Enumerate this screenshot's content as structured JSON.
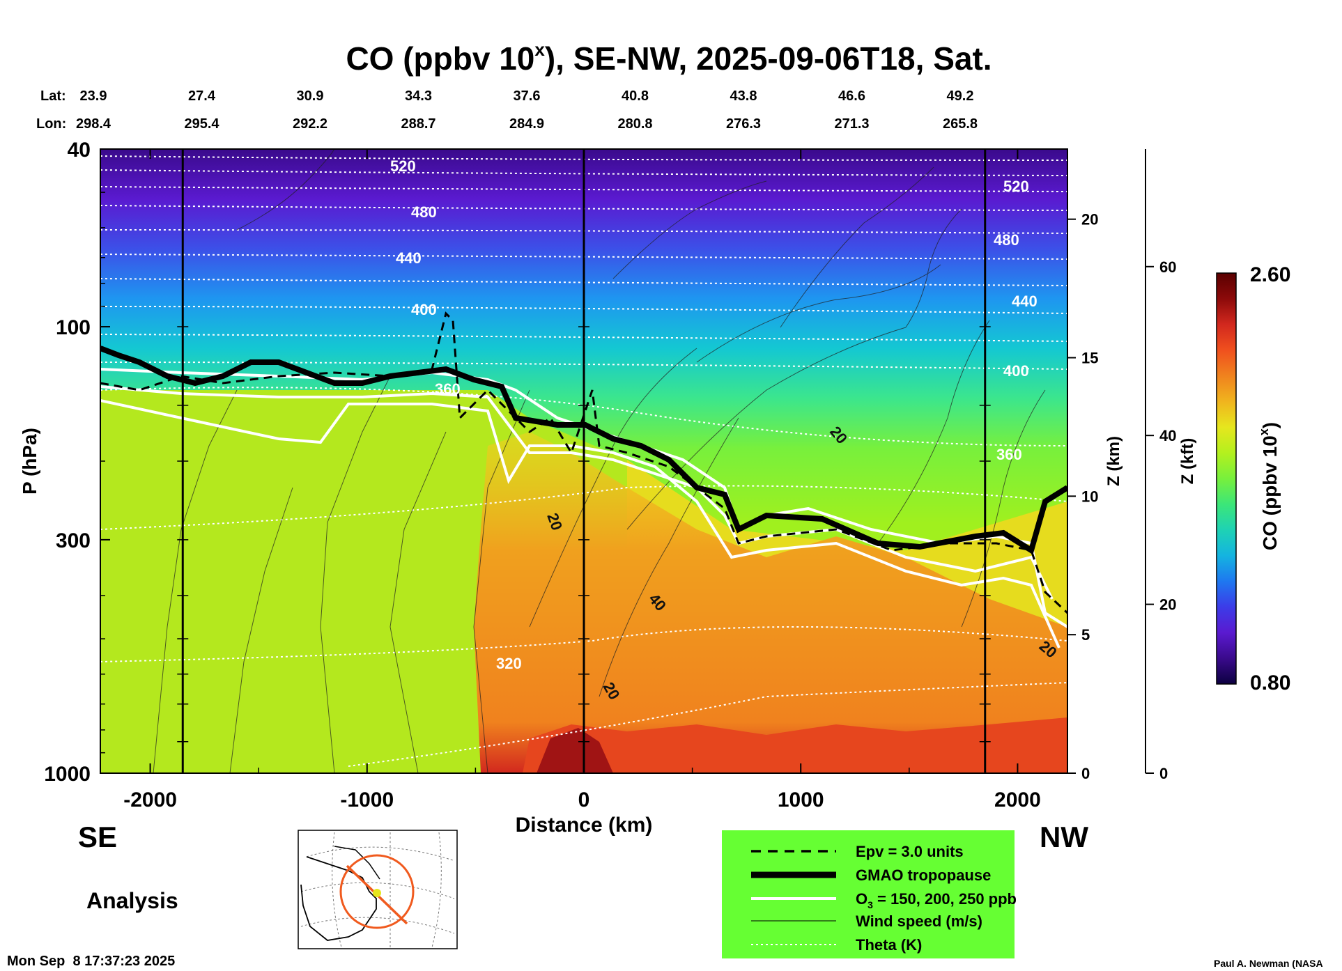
{
  "chart_data": {
    "type": "heatmap",
    "title": "CO (ppbv 10",
    "title_sup": "x",
    "title_rest": "), SE-NW, 2025-09-06T18, Sat.",
    "xlabel": "Distance (km)",
    "ylabel": "P (hPa)",
    "y2label": "Z (km)",
    "y3label": "Z (kft)",
    "x_ticks": [
      "-2000",
      "-1000",
      "0",
      "1000",
      "2000"
    ],
    "x_tick_values": [
      -2000,
      -1000,
      0,
      1000,
      2000
    ],
    "xlim": [
      -2230,
      2230
    ],
    "y_ticks": [
      "40",
      "100",
      "300",
      "1000"
    ],
    "y_tick_values": [
      40,
      100,
      300,
      1000
    ],
    "ylim": [
      1000,
      40
    ],
    "z_km_ticks": [
      "0",
      "5",
      "10",
      "15",
      "20"
    ],
    "z_kft_ticks": [
      "0",
      "20",
      "40",
      "60"
    ],
    "lat_label": "Lat:",
    "lon_label": "Lon:",
    "lats": [
      "23.9",
      "27.4",
      "30.9",
      "34.3",
      "37.6",
      "40.8",
      "43.8",
      "46.6",
      "49.2"
    ],
    "lons": [
      "298.4",
      "295.4",
      "292.2",
      "288.7",
      "284.9",
      "280.8",
      "276.3",
      "271.3",
      "265.8"
    ],
    "left_direction": "SE",
    "right_direction": "NW",
    "analysis_label": "Analysis",
    "timestamp": "Mon Sep  8 17:37:23 2025",
    "credit": "Paul A. Newman (NASA",
    "colorbar": {
      "label": "CO (ppbv 10",
      "label_sup": "x",
      "label_end": ")",
      "max": "2.60",
      "min": "0.80",
      "colors": [
        "#0c0040",
        "#3a0a8c",
        "#5a1ad0",
        "#3c3ce8",
        "#1e78f0",
        "#14b4e0",
        "#1ed2b4",
        "#3ce678",
        "#78f03c",
        "#b4f01e",
        "#e6e61e",
        "#f0b41e",
        "#f0821e",
        "#f0501e",
        "#d2281e",
        "#8c0a0a",
        "#5a0000"
      ]
    },
    "theta_labels": [
      "520",
      "480",
      "440",
      "400",
      "360",
      "320"
    ],
    "wind_labels": [
      "20",
      "40"
    ],
    "legend": [
      {
        "style": "dashed",
        "label": "Epv = 3.0 units"
      },
      {
        "style": "thick",
        "label": "GMAO tropopause"
      },
      {
        "style": "white",
        "label": "O",
        "sub": "3",
        "rest": " = 150, 200, 250 ppb"
      },
      {
        "style": "thin",
        "label": "Wind speed (m/s)"
      },
      {
        "style": "dotted",
        "label": "Theta (K)"
      }
    ],
    "legend_bg": "#66ff33"
  }
}
